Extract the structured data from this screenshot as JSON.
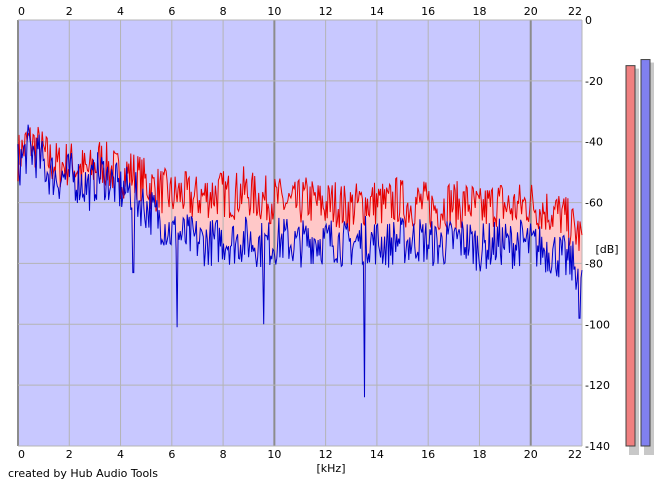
{
  "footer": {
    "credit": "created by Hub Audio Tools"
  },
  "colors": {
    "background": "#c8c8ff",
    "grid": "#b4b4b4",
    "grid_major": "#8c8c8c",
    "series_left": "#e60000",
    "series_right": "#0000c8",
    "fill_left": "#ffc8c8",
    "meter_left": "#f08080",
    "meter_right": "#8080f0"
  },
  "meters": {
    "left_level_db": -15,
    "right_level_db": -13
  },
  "chart_data": {
    "type": "area",
    "title": "",
    "xlabel": "[kHz]",
    "ylabel": "[dB]",
    "xlim": [
      0,
      22
    ],
    "ylim": [
      -140,
      0
    ],
    "x_ticks": [
      "0",
      "2",
      "4",
      "6",
      "8",
      "10",
      "12",
      "14",
      "16",
      "18",
      "20",
      "22"
    ],
    "y_ticks": [
      "0",
      "-20",
      "-40",
      "-60",
      "-80",
      "-100",
      "-120",
      "-140"
    ],
    "grid": true,
    "x": [
      0,
      0.4,
      0.8,
      1.2,
      1.6,
      2,
      2.4,
      2.8,
      3.2,
      3.6,
      4,
      4.4,
      4.8,
      5.2,
      5.6,
      6,
      6.4,
      6.8,
      7.2,
      7.6,
      8,
      8.4,
      8.8,
      9.2,
      9.6,
      10,
      10.4,
      10.8,
      11.2,
      11.6,
      12,
      12.4,
      12.8,
      13.2,
      13.6,
      14,
      14.4,
      14.8,
      15.2,
      15.6,
      16,
      16.4,
      16.8,
      17.2,
      17.6,
      18,
      18.4,
      18.8,
      19.2,
      19.6,
      20,
      20.4,
      20.8,
      21.2,
      21.6,
      22
    ],
    "series": [
      {
        "name": "",
        "values": [
          -45,
          -40,
          -42,
          -46,
          -48,
          -47,
          -49,
          -50,
          -46,
          -49,
          -51,
          -50,
          -52,
          -55,
          -56,
          -58,
          -57,
          -59,
          -58,
          -57,
          -57,
          -58,
          -56,
          -58,
          -59,
          -59,
          -60,
          -61,
          -59,
          -60,
          -61,
          -60,
          -62,
          -61,
          -60,
          -60,
          -61,
          -59,
          -61,
          -60,
          -61,
          -62,
          -60,
          -61,
          -60,
          -63,
          -61,
          -60,
          -62,
          -61,
          -60,
          -62,
          -63,
          -64,
          -68,
          -72
        ]
      },
      {
        "name": "",
        "values": [
          -48,
          -42,
          -45,
          -50,
          -52,
          -51,
          -53,
          -55,
          -50,
          -53,
          -56,
          -56,
          -60,
          -63,
          -66,
          -70,
          -71,
          -72,
          -73,
          -73,
          -72,
          -73,
          -72,
          -73,
          -74,
          -73,
          -72,
          -74,
          -73,
          -72,
          -73,
          -72,
          -74,
          -73,
          -72,
          -73,
          -74,
          -72,
          -73,
          -72,
          -73,
          -74,
          -73,
          -72,
          -73,
          -75,
          -74,
          -73,
          -74,
          -73,
          -74,
          -75,
          -76,
          -78,
          -80,
          -83
        ]
      }
    ],
    "dips": [
      {
        "series": 1,
        "x": 13.5,
        "y": -124
      },
      {
        "series": 1,
        "x": 6.2,
        "y": -101
      },
      {
        "series": 1,
        "x": 9.6,
        "y": -100
      },
      {
        "series": 1,
        "x": 4.5,
        "y": -83
      },
      {
        "series": 1,
        "x": 21.9,
        "y": -98
      }
    ]
  }
}
